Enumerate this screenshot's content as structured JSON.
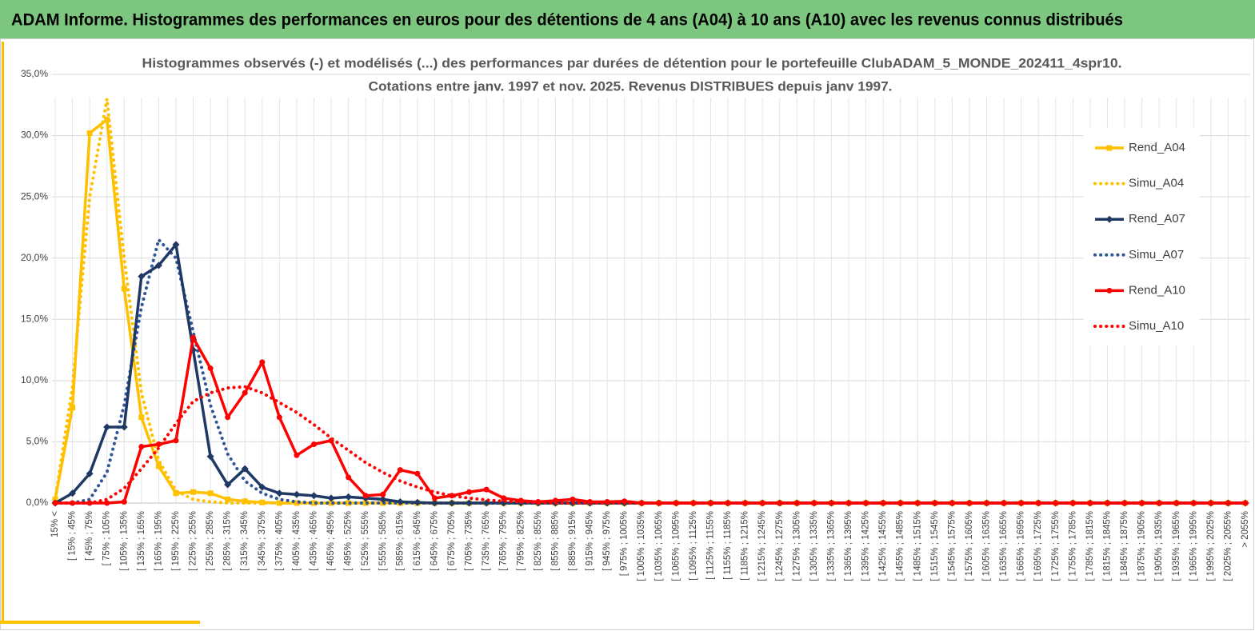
{
  "header": {
    "title": "ADAM Informe. Histogrammes des performances en euros pour des détentions de 4 ans (A04) à 10 ans (A10) avec les revenus connus distribués"
  },
  "chart_data": {
    "type": "line",
    "title": [
      "Histogrammes observés (-) et modélisés (...) des performances par durées de détention pour le portefeuille ClubADAM_5_MONDE_202411_4spr10.",
      "Cotations entre janv. 1997 et nov. 2025. Revenus DISTRIBUES depuis janv 1997."
    ],
    "categories": [
      "15% <",
      "[ 15% ; 45%",
      "[ 45% ; 75%",
      "[ 75% ; 105%",
      "[ 105% ; 135%",
      "[ 135% ; 165%",
      "[ 165% ; 195%",
      "[ 195% ; 225%",
      "[ 225% ; 255%",
      "[ 255% ; 285%",
      "[ 285% ; 315%",
      "[ 315% ; 345%",
      "[ 345% ; 375%",
      "[ 375% ; 405%",
      "[ 405% ; 435%",
      "[ 435% ; 465%",
      "[ 465% ; 495%",
      "[ 495% ; 525%",
      "[ 525% ; 555%",
      "[ 555% ; 585%",
      "[ 585% ; 615%",
      "[ 615% ; 645%",
      "[ 645% ; 675%",
      "[ 675% ; 705%",
      "[ 705% ; 735%",
      "[ 735% ; 765%",
      "[ 765% ; 795%",
      "[ 795% ; 825%",
      "[ 825% ; 855%",
      "[ 855% ; 885%",
      "[ 885% ; 915%",
      "[ 915% ; 945%",
      "[ 945% ; 975%",
      "[ 975% ; 1005%",
      "[ 1005% ; 1035%",
      "[ 1035% ; 1065%",
      "[ 1065% ; 1095%",
      "[ 1095% ; 1125%",
      "[ 1125% ; 1155%",
      "[ 1155% ; 1185%",
      "[ 1185% ; 1215%",
      "[ 1215% ; 1245%",
      "[ 1245% ; 1275%",
      "[ 1275% ; 1305%",
      "[ 1305% ; 1335%",
      "[ 1335% ; 1365%",
      "[ 1365% ; 1395%",
      "[ 1395% ; 1425%",
      "[ 1425% ; 1455%",
      "[ 1455% ; 1485%",
      "[ 1485% ; 1515%",
      "[ 1515% ; 1545%",
      "[ 1545% ; 1575%",
      "[ 1575% ; 1605%",
      "[ 1605% ; 1635%",
      "[ 1635% ; 1665%",
      "[ 1665% ; 1695%",
      "[ 1695% ; 1725%",
      "[ 1725% ; 1755%",
      "[ 1755% ; 1785%",
      "[ 1785% ; 1815%",
      "[ 1815% ; 1845%",
      "[ 1845% ; 1875%",
      "[ 1875% ; 1905%",
      "[ 1905% ; 1935%",
      "[ 1935% ; 1965%",
      "[ 1965% ; 1995%",
      "[ 1995% ; 2025%",
      "[ 2025% ; 2055%",
      "> 2055%"
    ],
    "series": [
      {
        "name": "Rend_A04",
        "color": "#FFC000",
        "style": "solid",
        "marker": "square",
        "values": [
          0.3,
          7.8,
          30.2,
          31.3,
          17.5,
          7.0,
          3.0,
          0.8,
          0.9,
          0.8,
          0.3,
          0.15,
          0.05,
          0,
          0,
          0,
          0,
          0,
          0,
          0,
          0,
          0,
          0,
          0,
          0,
          0,
          0,
          0,
          0,
          0,
          0,
          0,
          0,
          0,
          0,
          0,
          0,
          0,
          0,
          0,
          0,
          0,
          0,
          0,
          0,
          0,
          0,
          0,
          0,
          0,
          0,
          0,
          0,
          0,
          0,
          0,
          0,
          0,
          0,
          0,
          0,
          0,
          0,
          0,
          0,
          0,
          0,
          0,
          0,
          0
        ]
      },
      {
        "name": "Simu_A04",
        "color": "#FFC000",
        "style": "dotted",
        "marker": "none",
        "values": [
          0.3,
          9.5,
          25,
          33.0,
          20,
          9,
          3.5,
          1.0,
          0.3,
          0.1,
          0,
          0,
          0,
          0,
          0,
          0,
          0,
          0,
          0,
          0,
          0,
          0,
          0,
          0,
          0,
          0,
          0,
          0,
          0,
          0,
          0,
          0,
          0,
          0,
          0,
          0,
          0,
          0,
          0,
          0,
          0,
          0,
          0,
          0,
          0,
          0,
          0,
          0,
          0,
          0,
          0,
          0,
          0,
          0,
          0,
          0,
          0,
          0,
          0,
          0,
          0,
          0,
          0,
          0,
          0,
          0,
          0,
          0,
          0,
          0
        ]
      },
      {
        "name": "Rend_A07",
        "color": "#1F3864",
        "style": "solid",
        "marker": "diamond",
        "values": [
          0,
          0.8,
          2.4,
          6.2,
          6.2,
          18.5,
          19.4,
          21.1,
          12.5,
          3.8,
          1.5,
          2.8,
          1.3,
          0.8,
          0.7,
          0.6,
          0.4,
          0.5,
          0.4,
          0.3,
          0.1,
          0.05,
          0,
          0,
          0,
          0,
          0,
          0,
          0,
          0,
          0,
          0,
          0,
          0,
          0,
          0,
          0,
          0,
          0,
          0,
          0,
          0,
          0,
          0,
          0,
          0,
          0,
          0,
          0,
          0,
          0,
          0,
          0,
          0,
          0,
          0,
          0,
          0,
          0,
          0,
          0,
          0,
          0,
          0,
          0,
          0,
          0,
          0,
          0,
          0
        ]
      },
      {
        "name": "Simu_A07",
        "color": "#2F5597",
        "style": "dotted",
        "marker": "none",
        "values": [
          0,
          0,
          0.3,
          2.5,
          8,
          16,
          21.5,
          20,
          14,
          8,
          4,
          1.8,
          0.8,
          0.3,
          0.1,
          0,
          0,
          0,
          0,
          0,
          0,
          0,
          0,
          0,
          0,
          0,
          0,
          0,
          0,
          0,
          0,
          0,
          0,
          0,
          0,
          0,
          0,
          0,
          0,
          0,
          0,
          0,
          0,
          0,
          0,
          0,
          0,
          0,
          0,
          0,
          0,
          0,
          0,
          0,
          0,
          0,
          0,
          0,
          0,
          0,
          0,
          0,
          0,
          0,
          0,
          0,
          0,
          0,
          0,
          0
        ]
      },
      {
        "name": "Rend_A10",
        "color": "#FF0000",
        "style": "solid",
        "marker": "circle",
        "values": [
          0,
          0,
          0,
          0,
          0.1,
          4.6,
          4.8,
          5.1,
          13.5,
          11.0,
          7.0,
          9.0,
          11.5,
          7.0,
          3.9,
          4.8,
          5.1,
          2.1,
          0.6,
          0.7,
          2.7,
          2.4,
          0.4,
          0.6,
          0.9,
          1.1,
          0.4,
          0.2,
          0.1,
          0.2,
          0.3,
          0.1,
          0.1,
          0.15,
          0,
          0,
          0,
          0,
          0,
          0,
          0,
          0,
          0,
          0,
          0,
          0,
          0,
          0,
          0,
          0,
          0,
          0,
          0,
          0,
          0,
          0,
          0,
          0,
          0,
          0,
          0,
          0,
          0,
          0,
          0,
          0,
          0,
          0,
          0,
          0
        ]
      },
      {
        "name": "Simu_A10",
        "color": "#FF0000",
        "style": "dotted",
        "marker": "none",
        "values": [
          0,
          0,
          0,
          0.3,
          1.2,
          2.8,
          4.5,
          6.5,
          8.3,
          9.0,
          9.4,
          9.5,
          9.0,
          8.2,
          7.4,
          6.4,
          5.3,
          4.3,
          3.3,
          2.5,
          1.8,
          1.3,
          0.9,
          0.6,
          0.4,
          0.25,
          0.15,
          0.1,
          0.05,
          0,
          0,
          0,
          0,
          0,
          0,
          0,
          0,
          0,
          0,
          0,
          0,
          0,
          0,
          0,
          0,
          0,
          0,
          0,
          0,
          0,
          0,
          0,
          0,
          0,
          0,
          0,
          0,
          0,
          0,
          0,
          0,
          0,
          0,
          0,
          0,
          0,
          0,
          0,
          0,
          0
        ]
      }
    ],
    "ylim": [
      0,
      35
    ],
    "yticks": [
      {
        "value": 0,
        "label": "0,0%"
      },
      {
        "value": 5,
        "label": "5,0%"
      },
      {
        "value": 10,
        "label": "10,0%"
      },
      {
        "value": 15,
        "label": "15,0%"
      },
      {
        "value": 20,
        "label": "20,0%"
      },
      {
        "value": 25,
        "label": "25,0%"
      },
      {
        "value": 30,
        "label": "30,0%"
      },
      {
        "value": 35,
        "label": "35,0%"
      }
    ],
    "grid": true,
    "legend": "right"
  }
}
